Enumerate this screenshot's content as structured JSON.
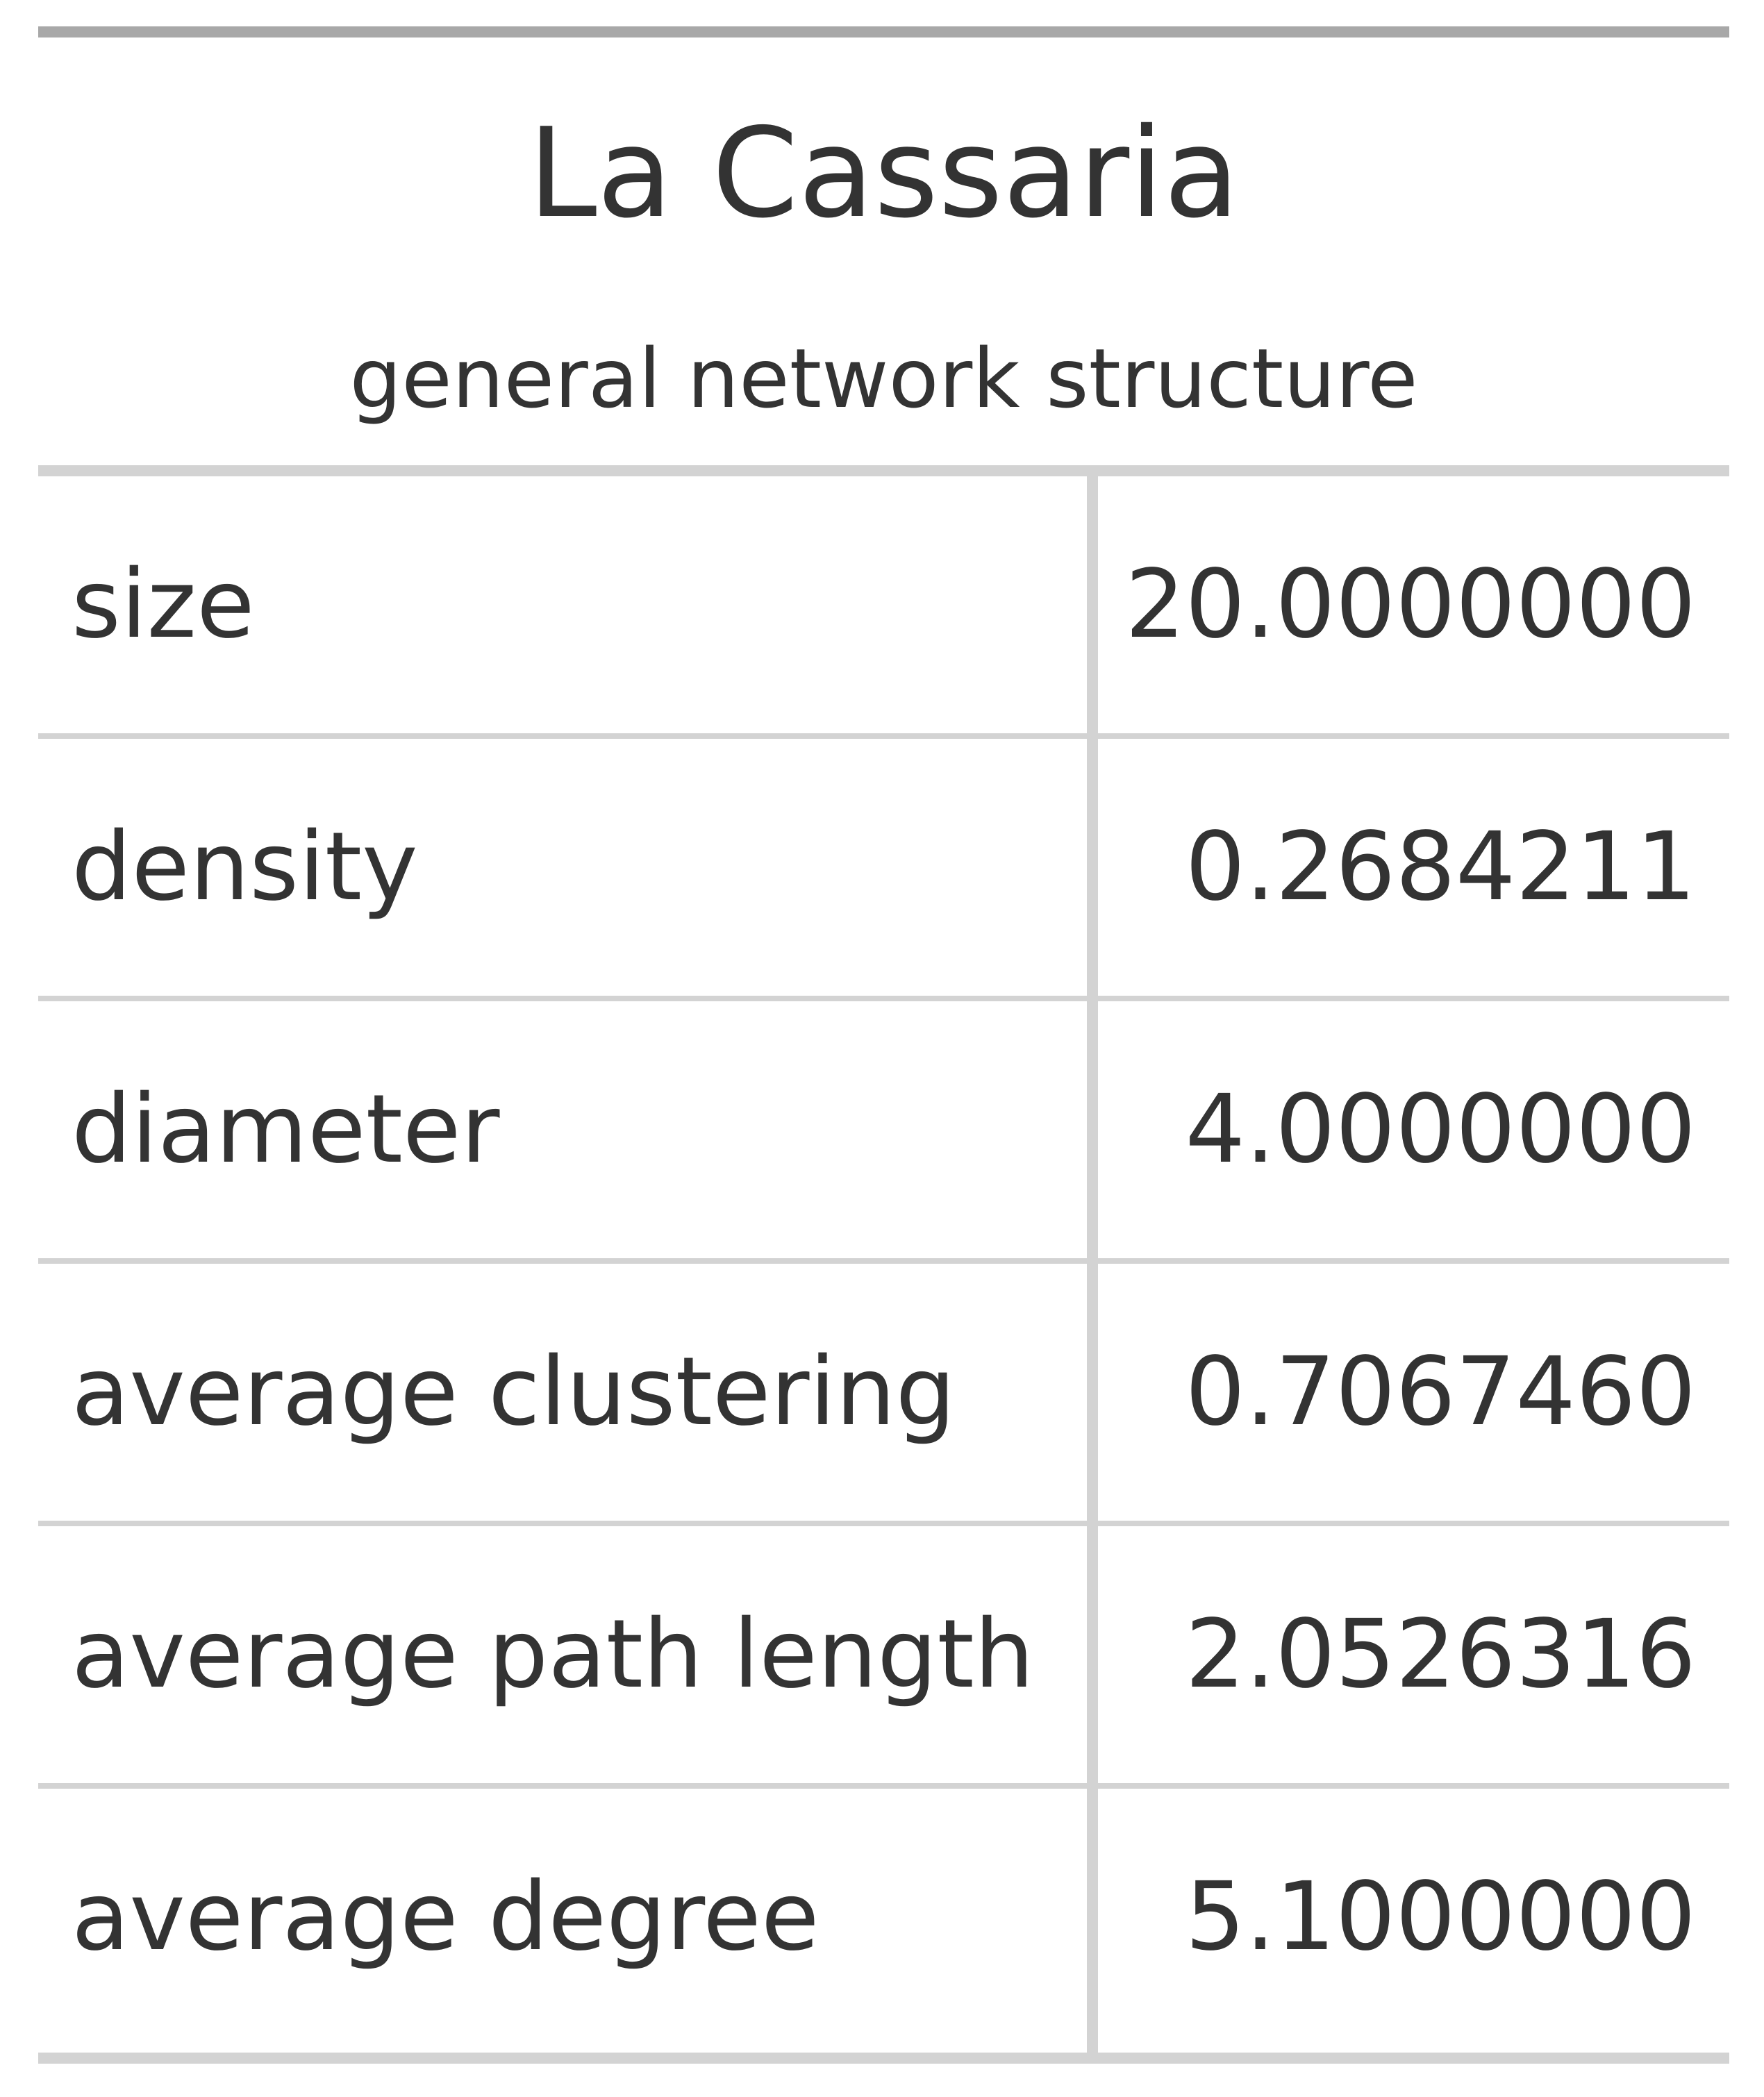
{
  "table": {
    "title": "La Cassaria",
    "subtitle": "general network structure",
    "rows": [
      {
        "label": "size",
        "value": "20.0000000"
      },
      {
        "label": "density",
        "value": "0.2684211"
      },
      {
        "label": "diameter",
        "value": "4.0000000"
      },
      {
        "label": "average clustering",
        "value": "0.7067460"
      },
      {
        "label": "average path length",
        "value": "2.0526316"
      },
      {
        "label": "average degree",
        "value": "5.1000000"
      }
    ]
  },
  "colors": {
    "text": "#333333",
    "top_rule": "#a8a8a8",
    "rules": "#d3d3d3"
  }
}
